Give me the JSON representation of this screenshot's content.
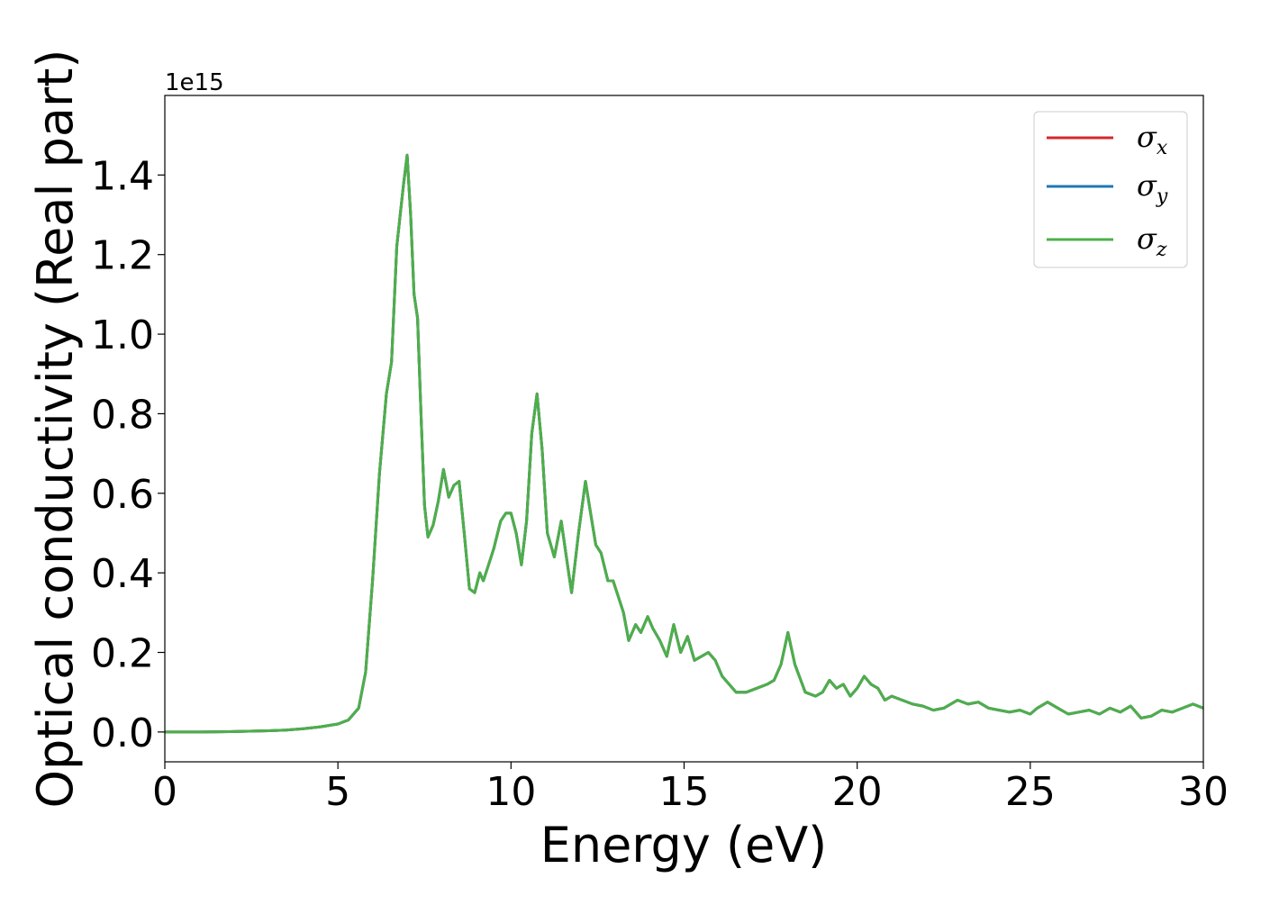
{
  "chart_data": {
    "type": "line",
    "xlabel": "Energy (eV)",
    "ylabel": "Optical conductivity (Real part)",
    "y_offset_text": "1e15",
    "y_scale_factor": 1000000000000000.0,
    "xlim": [
      0,
      30
    ],
    "ylim": [
      -0.075,
      1.6
    ],
    "xticks": [
      0,
      5,
      10,
      15,
      20,
      25,
      30
    ],
    "xtick_labels": [
      "0",
      "5",
      "10",
      "15",
      "20",
      "25",
      "30"
    ],
    "yticks": [
      0.0,
      0.2,
      0.4,
      0.6,
      0.8,
      1.0,
      1.2,
      1.4
    ],
    "ytick_labels": [
      "0.0",
      "0.2",
      "0.4",
      "0.6",
      "0.8",
      "1.0",
      "1.2",
      "1.4"
    ],
    "grid": false,
    "legend_position": "top-right",
    "x": [
      0,
      1,
      2,
      3,
      3.5,
      4,
      4.5,
      5,
      5.3,
      5.6,
      5.8,
      6.0,
      6.2,
      6.4,
      6.55,
      6.7,
      6.8,
      6.9,
      7.0,
      7.1,
      7.2,
      7.3,
      7.4,
      7.5,
      7.6,
      7.75,
      7.9,
      8.05,
      8.2,
      8.35,
      8.5,
      8.65,
      8.8,
      8.95,
      9.1,
      9.2,
      9.35,
      9.5,
      9.7,
      9.85,
      10.0,
      10.15,
      10.3,
      10.45,
      10.6,
      10.75,
      10.9,
      11.05,
      11.25,
      11.45,
      11.6,
      11.75,
      11.95,
      12.15,
      12.3,
      12.45,
      12.6,
      12.8,
      12.95,
      13.1,
      13.25,
      13.4,
      13.6,
      13.75,
      13.95,
      14.1,
      14.3,
      14.5,
      14.7,
      14.9,
      15.1,
      15.3,
      15.5,
      15.7,
      15.9,
      16.1,
      16.3,
      16.5,
      16.8,
      17.1,
      17.4,
      17.6,
      17.8,
      18.0,
      18.2,
      18.5,
      18.8,
      19.0,
      19.2,
      19.4,
      19.6,
      19.8,
      20.0,
      20.2,
      20.4,
      20.6,
      20.8,
      21.0,
      21.3,
      21.6,
      21.9,
      22.2,
      22.5,
      22.9,
      23.2,
      23.5,
      23.8,
      24.1,
      24.4,
      24.7,
      25.0,
      25.2,
      25.5,
      25.8,
      26.1,
      26.4,
      26.7,
      27.0,
      27.3,
      27.6,
      27.9,
      28.2,
      28.5,
      28.8,
      29.1,
      29.4,
      29.7,
      30.0
    ],
    "series": [
      {
        "name": "σx",
        "color": "#d62728"
      },
      {
        "name": "σy",
        "color": "#1f77b4"
      },
      {
        "name": "σz",
        "color": "#4daf4a",
        "values": [
          0.0,
          0.0,
          0.001,
          0.003,
          0.005,
          0.008,
          0.013,
          0.02,
          0.03,
          0.06,
          0.15,
          0.38,
          0.65,
          0.85,
          0.93,
          1.22,
          1.3,
          1.38,
          1.45,
          1.3,
          1.1,
          1.04,
          0.8,
          0.57,
          0.49,
          0.52,
          0.58,
          0.66,
          0.59,
          0.62,
          0.63,
          0.5,
          0.36,
          0.35,
          0.4,
          0.38,
          0.42,
          0.46,
          0.53,
          0.55,
          0.55,
          0.5,
          0.42,
          0.53,
          0.75,
          0.85,
          0.71,
          0.5,
          0.44,
          0.53,
          0.44,
          0.35,
          0.5,
          0.63,
          0.55,
          0.47,
          0.45,
          0.38,
          0.38,
          0.34,
          0.3,
          0.23,
          0.27,
          0.25,
          0.29,
          0.26,
          0.23,
          0.19,
          0.27,
          0.2,
          0.24,
          0.18,
          0.19,
          0.2,
          0.18,
          0.14,
          0.12,
          0.1,
          0.1,
          0.11,
          0.12,
          0.13,
          0.17,
          0.25,
          0.17,
          0.1,
          0.09,
          0.1,
          0.13,
          0.11,
          0.12,
          0.09,
          0.11,
          0.14,
          0.12,
          0.11,
          0.08,
          0.09,
          0.08,
          0.07,
          0.065,
          0.055,
          0.06,
          0.08,
          0.07,
          0.075,
          0.06,
          0.055,
          0.05,
          0.055,
          0.045,
          0.06,
          0.075,
          0.06,
          0.045,
          0.05,
          0.055,
          0.045,
          0.06,
          0.05,
          0.065,
          0.035,
          0.04,
          0.055,
          0.05,
          0.06,
          0.07,
          0.06
        ]
      }
    ]
  }
}
